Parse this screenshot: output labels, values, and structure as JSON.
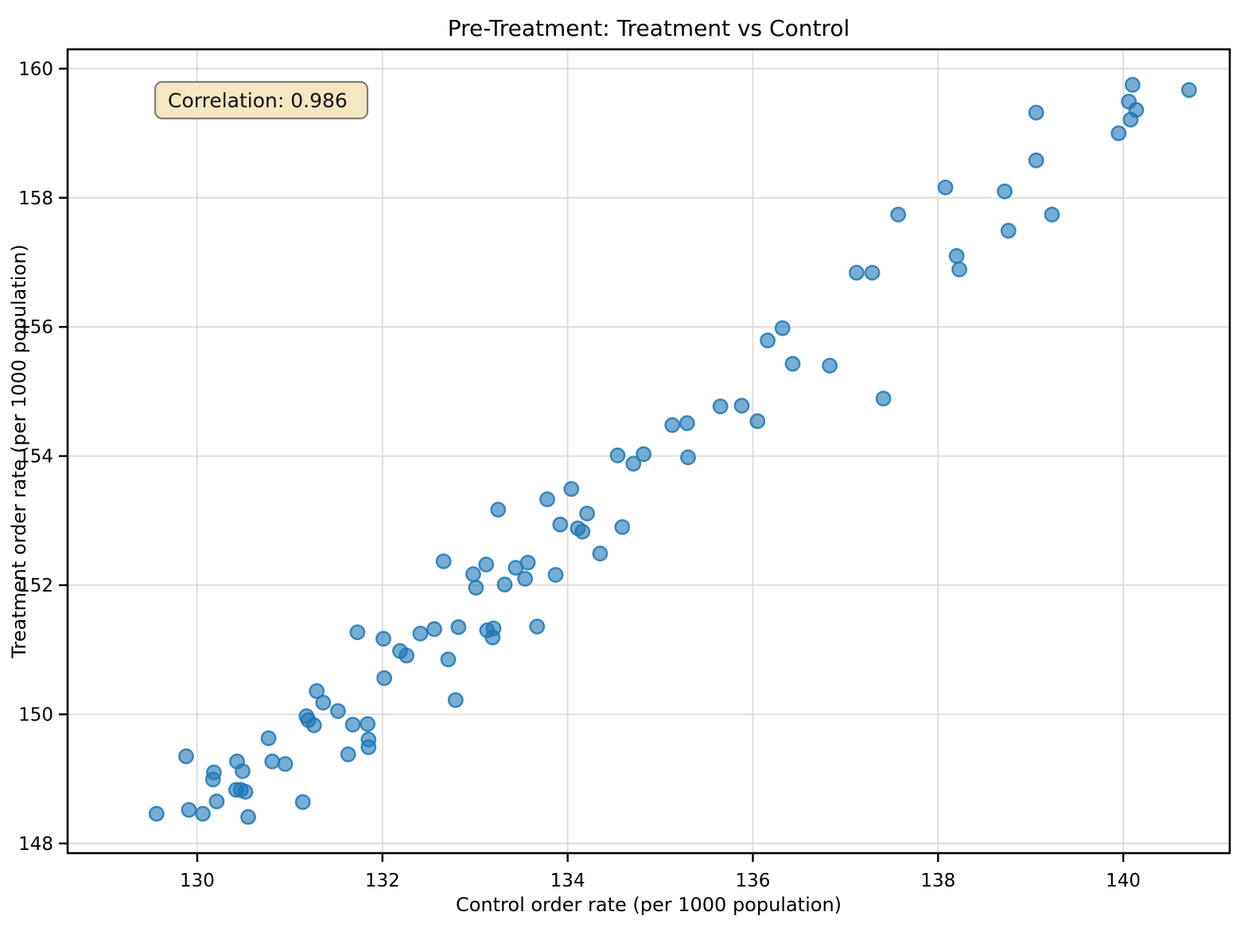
{
  "chart_data": {
    "type": "scatter",
    "title": "Pre-Treatment: Treatment vs Control",
    "xlabel": "Control order rate (per 1000 population)",
    "ylabel": "Treatment order rate (per 1000 population)",
    "xlim": [
      128.6,
      141.15
    ],
    "ylim": [
      147.85,
      160.3
    ],
    "xticks": [
      130,
      132,
      134,
      136,
      138,
      140
    ],
    "yticks": [
      148,
      150,
      152,
      154,
      156,
      158,
      160
    ],
    "grid": true,
    "legend": "none",
    "annotation": {
      "text": "Correlation: 0.986",
      "bg_color": "#f5e7c3",
      "border_color": "#7f7f7b"
    },
    "marker": {
      "color": "#1f77b4",
      "fill_opacity": 0.6,
      "edge_opacity": 0.85,
      "radius": 8.7
    },
    "points": [
      [
        129.56,
        148.46
      ],
      [
        129.91,
        148.52
      ],
      [
        130.06,
        148.46
      ],
      [
        129.88,
        149.35
      ],
      [
        130.21,
        148.65
      ],
      [
        130.18,
        149.1
      ],
      [
        130.17,
        148.99
      ],
      [
        130.55,
        148.41
      ],
      [
        130.42,
        148.83
      ],
      [
        130.47,
        148.83
      ],
      [
        130.52,
        148.8
      ],
      [
        130.43,
        149.27
      ],
      [
        130.49,
        149.12
      ],
      [
        130.77,
        149.63
      ],
      [
        130.81,
        149.27
      ],
      [
        130.95,
        149.23
      ],
      [
        131.14,
        148.64
      ],
      [
        131.18,
        149.97
      ],
      [
        131.2,
        149.91
      ],
      [
        131.26,
        149.83
      ],
      [
        131.36,
        150.18
      ],
      [
        131.52,
        150.05
      ],
      [
        131.68,
        149.84
      ],
      [
        131.84,
        149.85
      ],
      [
        131.85,
        149.61
      ],
      [
        131.85,
        149.49
      ],
      [
        131.63,
        149.38
      ],
      [
        131.29,
        150.36
      ],
      [
        131.73,
        151.27
      ],
      [
        132.01,
        151.17
      ],
      [
        132.02,
        150.56
      ],
      [
        132.19,
        150.98
      ],
      [
        132.26,
        150.91
      ],
      [
        132.41,
        151.25
      ],
      [
        132.56,
        151.32
      ],
      [
        132.71,
        150.85
      ],
      [
        132.79,
        150.22
      ],
      [
        132.82,
        151.35
      ],
      [
        133.13,
        151.3
      ],
      [
        133.2,
        151.33
      ],
      [
        133.19,
        151.19
      ],
      [
        133.67,
        151.36
      ],
      [
        132.66,
        152.37
      ],
      [
        132.98,
        152.17
      ],
      [
        133.01,
        151.96
      ],
      [
        133.12,
        152.32
      ],
      [
        133.25,
        153.17
      ],
      [
        133.32,
        152.01
      ],
      [
        133.44,
        152.27
      ],
      [
        133.54,
        152.1
      ],
      [
        133.57,
        152.35
      ],
      [
        133.78,
        153.33
      ],
      [
        133.87,
        152.16
      ],
      [
        133.92,
        152.94
      ],
      [
        134.04,
        153.49
      ],
      [
        134.11,
        152.88
      ],
      [
        134.16,
        152.83
      ],
      [
        134.21,
        153.11
      ],
      [
        134.35,
        152.49
      ],
      [
        134.59,
        152.9
      ],
      [
        134.54,
        154.01
      ],
      [
        134.71,
        153.88
      ],
      [
        134.82,
        154.03
      ],
      [
        135.3,
        153.98
      ],
      [
        135.13,
        154.48
      ],
      [
        135.29,
        154.51
      ],
      [
        135.65,
        154.77
      ],
      [
        135.88,
        154.78
      ],
      [
        136.05,
        154.54
      ],
      [
        136.16,
        155.79
      ],
      [
        136.32,
        155.98
      ],
      [
        136.43,
        155.43
      ],
      [
        136.83,
        155.4
      ],
      [
        137.41,
        154.89
      ],
      [
        137.12,
        156.84
      ],
      [
        137.29,
        156.84
      ],
      [
        137.57,
        157.74
      ],
      [
        138.08,
        158.16
      ],
      [
        138.2,
        157.1
      ],
      [
        138.23,
        156.89
      ],
      [
        138.72,
        158.1
      ],
      [
        138.76,
        157.49
      ],
      [
        139.06,
        159.32
      ],
      [
        139.06,
        158.58
      ],
      [
        139.23,
        157.74
      ],
      [
        139.95,
        159.0
      ],
      [
        140.06,
        159.49
      ],
      [
        140.08,
        159.21
      ],
      [
        140.1,
        159.75
      ],
      [
        140.14,
        159.36
      ],
      [
        140.71,
        159.67
      ]
    ]
  }
}
